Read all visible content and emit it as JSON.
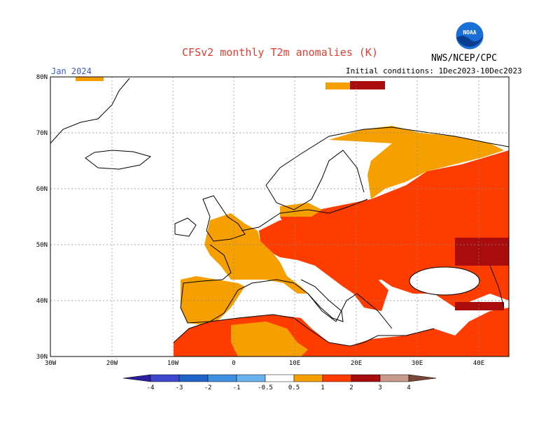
{
  "title": "CFSv2 monthly T2m anomalies (K)",
  "org": "NWS/NCEP/CPC",
  "month": "Jan 2024",
  "initial_conditions": "Initial conditions: 1Dec2023-10Dec2023",
  "logo_text": "NOAA",
  "lat_labels": [
    "80N",
    "70N",
    "60N",
    "50N",
    "40N",
    "30N"
  ],
  "lon_labels": [
    "30W",
    "20W",
    "10W",
    "0",
    "10E",
    "20E",
    "30E",
    "40E"
  ],
  "colorbar": {
    "labels": [
      "-4",
      "-3",
      "-2",
      "-1",
      "-0.5",
      "0.5",
      "1",
      "2",
      "3",
      "4"
    ],
    "colors": [
      "#2a1f9e",
      "#3f48cc",
      "#1f63c8",
      "#3f8fe0",
      "#6ab1f0",
      "#ffffff",
      "#f5a000",
      "#ff3c00",
      "#a80c0c",
      "#c89a8a",
      "#7a4638"
    ]
  },
  "map": {
    "lon_range": [
      -30,
      45
    ],
    "lat_range": [
      30,
      80
    ],
    "colors": {
      "ocean": "#ffffff",
      "weak": "#f5a000",
      "mid": "#ff3c00",
      "strong": "#a80c0c"
    }
  }
}
